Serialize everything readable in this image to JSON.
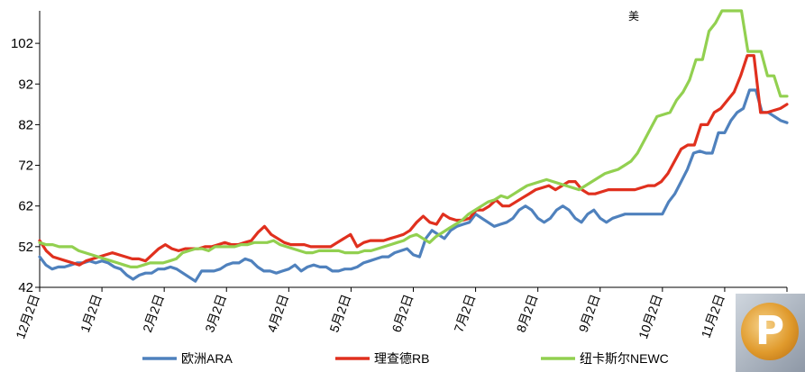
{
  "chart_data": {
    "type": "line",
    "title": "美",
    "xlabel": "",
    "ylabel": "",
    "ylim": [
      42,
      110
    ],
    "yticks": [
      42,
      52,
      62,
      72,
      82,
      92,
      102
    ],
    "x_tick_labels": [
      "12月2日",
      "1月2日",
      "2月2日",
      "3月2日",
      "4月2日",
      "5月2日",
      "6月2日",
      "7月2日",
      "8月2日",
      "9月2日",
      "10月2日",
      "11月2日",
      "12月2日"
    ],
    "grid": false,
    "legend_position": "bottom",
    "series": [
      {
        "name": "欧洲ARA",
        "color": "#4f81bd",
        "values": [
          49.5,
          47.5,
          46.5,
          47,
          47,
          47.5,
          48,
          48,
          48.5,
          48,
          48.5,
          48,
          47,
          46.5,
          45,
          44,
          45,
          45.5,
          45.5,
          46.5,
          46.5,
          47,
          46.5,
          45.5,
          44.5,
          43.5,
          46,
          46,
          46,
          46.5,
          47.5,
          48,
          48,
          49,
          48.5,
          47,
          46,
          46,
          45.5,
          46,
          46.5,
          47.5,
          46,
          47,
          47.5,
          47,
          47,
          46,
          46,
          46.5,
          46.5,
          47,
          48,
          48.5,
          49,
          49.5,
          49.5,
          50.5,
          51,
          51.5,
          50,
          49.5,
          54,
          56,
          55,
          54,
          56,
          57,
          57.5,
          58,
          60,
          59,
          58,
          57,
          57.5,
          58,
          59,
          61,
          62,
          61,
          59,
          58,
          59,
          61,
          62,
          61,
          59,
          58,
          60,
          61,
          59,
          58,
          59,
          59.5,
          60,
          60,
          60,
          60,
          60,
          60,
          60,
          63,
          65,
          68,
          71,
          75,
          75.5,
          75,
          75,
          80,
          80,
          83,
          85,
          86,
          90.5,
          90.5,
          85,
          85,
          84,
          83,
          82.5
        ],
        "dash": "none"
      },
      {
        "name": "理查德RB",
        "color": "#e0301e",
        "values": [
          53.5,
          51,
          49.5,
          49,
          48.5,
          48,
          47.5,
          48.5,
          49,
          49.5,
          50,
          50.5,
          50,
          49.5,
          49,
          49,
          48.5,
          50,
          51.5,
          52.5,
          51.5,
          51,
          51.5,
          51.5,
          51.5,
          52,
          52,
          52.5,
          53,
          52.5,
          52.5,
          53,
          53.5,
          55.5,
          57,
          55,
          54,
          53,
          52.5,
          52.5,
          52.5,
          52,
          52,
          52,
          52,
          53,
          54,
          55,
          52,
          53,
          53.5,
          53.5,
          53.5,
          54,
          54.5,
          55,
          56,
          58,
          59.5,
          58,
          57.5,
          60,
          59,
          58.5,
          58.5,
          59,
          61,
          61,
          62,
          63.5,
          62,
          62,
          63,
          64,
          65,
          66,
          66.5,
          67,
          66,
          67,
          68,
          68,
          66,
          65,
          65,
          65.5,
          66,
          66,
          66,
          66,
          66,
          66.5,
          67,
          67,
          68,
          70,
          73,
          76,
          77,
          77,
          82,
          82,
          85,
          86,
          88,
          90,
          94,
          99,
          99,
          85,
          85,
          85.5,
          86,
          87
        ],
        "dash": "none"
      },
      {
        "name": "纽卡斯尔NEWC",
        "color": "#92d050",
        "values": [
          53,
          52.5,
          52.5,
          52,
          52,
          52,
          51,
          50.5,
          50,
          49.5,
          49,
          48.5,
          48,
          47.5,
          47,
          47,
          47.5,
          48,
          48,
          48,
          48.5,
          49,
          50.5,
          51,
          51.5,
          51.5,
          51,
          52,
          52,
          52,
          52,
          52.5,
          52.5,
          53,
          53,
          53,
          53.5,
          52.5,
          52,
          51.5,
          51,
          50.5,
          50.5,
          51,
          51,
          51,
          51,
          50.5,
          50.5,
          50.5,
          51,
          51,
          51.5,
          52,
          52.5,
          53,
          53.5,
          54.5,
          55,
          54,
          53,
          54.5,
          55.5,
          56.5,
          57.5,
          58.5,
          60,
          61,
          62,
          63,
          63.5,
          64.5,
          64,
          65,
          66,
          67,
          67.5,
          68,
          68.5,
          68,
          67.5,
          67,
          66.5,
          66,
          67,
          68,
          69,
          70,
          70.5,
          71,
          72,
          73,
          75,
          78,
          81,
          84,
          84.5,
          85,
          88,
          90,
          93,
          98,
          98,
          105,
          107,
          110,
          110,
          110,
          110,
          100,
          100,
          100,
          94,
          94,
          89,
          89
        ],
        "dash": "none"
      }
    ]
  },
  "logo_letter": "P"
}
